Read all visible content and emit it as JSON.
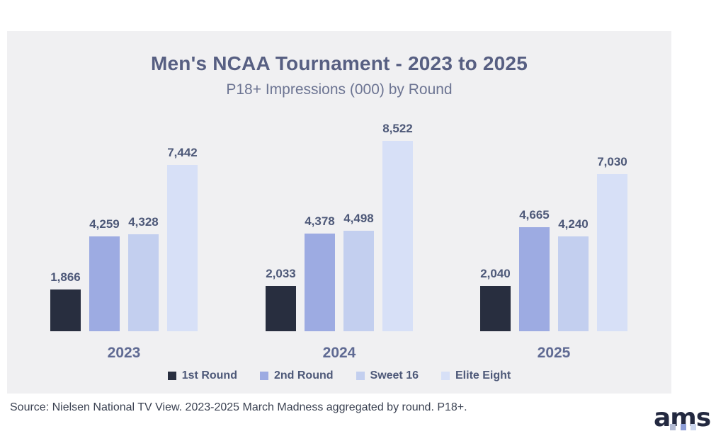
{
  "header": {
    "title": "Men's NCAA Tournament - 2023 to 2025",
    "subtitle": "P18+ Impressions (000) by Round"
  },
  "chart_data": {
    "type": "bar",
    "title": "Men's NCAA Tournament - 2023 to 2025",
    "subtitle": "P18+ Impressions (000) by Round",
    "categories": [
      "2023",
      "2024",
      "2025"
    ],
    "series": [
      {
        "name": "1st Round",
        "color": "#282e3f",
        "values": [
          1866,
          2033,
          2040
        ],
        "labels": [
          "1,866",
          "2,033",
          "2,040"
        ]
      },
      {
        "name": "2nd Round",
        "color": "#9dabe2",
        "values": [
          4259,
          4378,
          4665
        ],
        "labels": [
          "4,259",
          "4,378",
          "4,665"
        ]
      },
      {
        "name": "Sweet 16",
        "color": "#c3cfef",
        "values": [
          4328,
          4498,
          4240
        ],
        "labels": [
          "4,328",
          "4,498",
          "4,240"
        ]
      },
      {
        "name": "Elite Eight",
        "color": "#d7e0f7",
        "values": [
          7442,
          8522,
          7030
        ],
        "labels": [
          "7,442",
          "8,522",
          "7,030"
        ]
      }
    ],
    "ylim": [
      0,
      8522
    ],
    "grid": false,
    "legend_position": "bottom",
    "value_unit": "impressions (000)"
  },
  "footer": {
    "source": "Source: Nielsen National TV View. 2023-2025 March Madness aggregated by round. P18+.",
    "logo_text": "ams"
  },
  "colors": {
    "card_background": "#f0f0f2",
    "page_background": "#ffffff",
    "title_text": "#575f82",
    "subtitle_text": "#6c7492",
    "data_label_text": "#4d5878",
    "year_label_text": "#5f6a93",
    "source_text": "#3b4252",
    "logo_text": "#232940"
  }
}
